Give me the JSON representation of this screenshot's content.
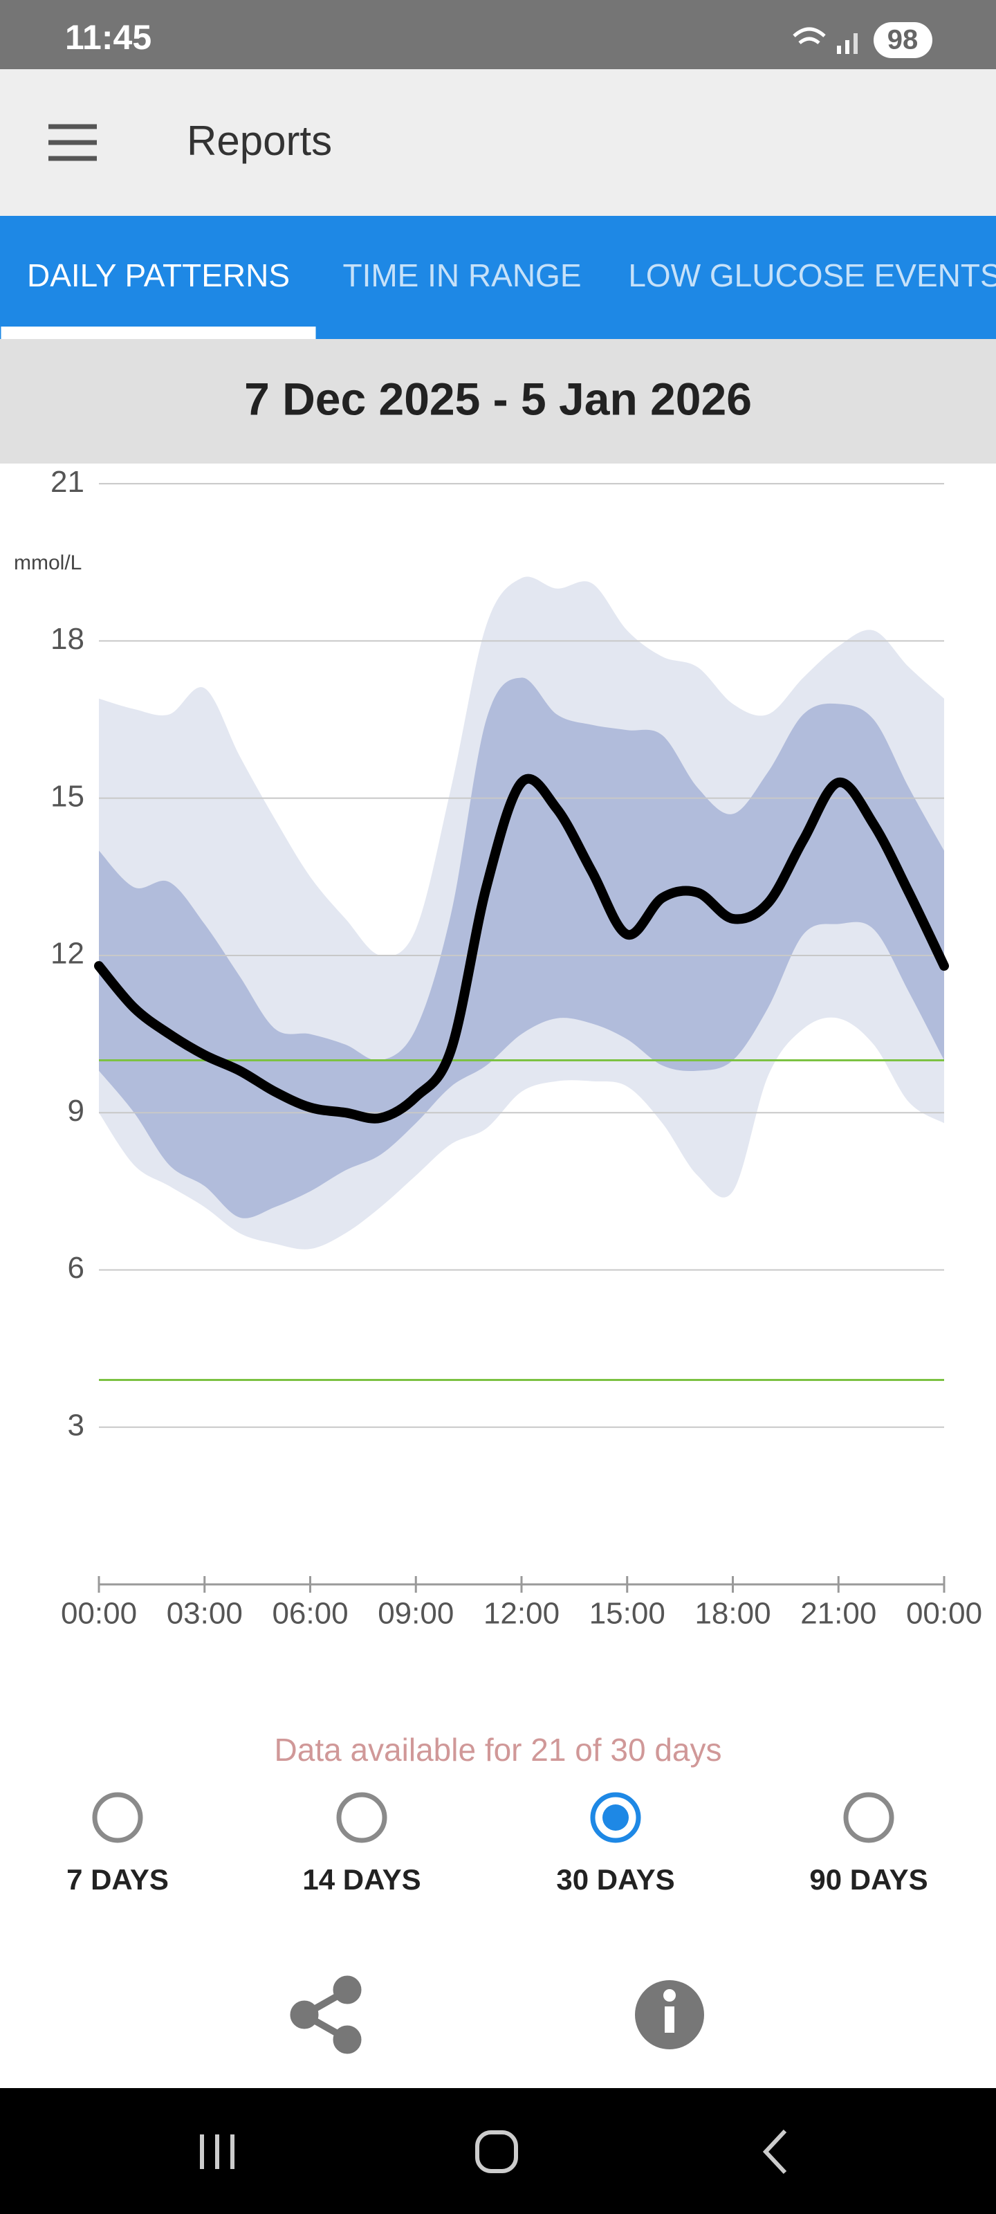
{
  "status_bar": {
    "time": "11:45",
    "battery": 98
  },
  "app_bar": {
    "title": "Reports"
  },
  "tabs": [
    {
      "label": "DAILY PATTERNS",
      "selected": true
    },
    {
      "label": "TIME IN RANGE",
      "selected": false
    },
    {
      "label": "LOW GLUCOSE EVENTS",
      "selected": false
    }
  ],
  "date_range": "7 Dec 2025 - 5 Jan 2026",
  "chart_data": {
    "type": "line",
    "y_label": "mmol/L",
    "x": [
      0,
      1,
      2,
      3,
      4,
      5,
      6,
      7,
      8,
      9,
      10,
      11,
      12,
      13,
      14,
      15,
      16,
      17,
      18,
      19,
      20,
      21,
      22,
      23,
      24
    ],
    "xlim": [
      0,
      24
    ],
    "xticks": [
      {
        "value": 0,
        "label": "00:00"
      },
      {
        "value": 3,
        "label": "03:00"
      },
      {
        "value": 6,
        "label": "06:00"
      },
      {
        "value": 9,
        "label": "09:00"
      },
      {
        "value": 12,
        "label": "12:00"
      },
      {
        "value": 15,
        "label": "15:00"
      },
      {
        "value": 18,
        "label": "18:00"
      },
      {
        "value": 21,
        "label": "21:00"
      },
      {
        "value": 24,
        "label": "00:00"
      }
    ],
    "ylim": [
      0,
      21
    ],
    "yticks": [
      3,
      6,
      9,
      12,
      15,
      18,
      21
    ],
    "grid": true,
    "target_lines": [
      10,
      3.9
    ],
    "target_color": "#7cc242",
    "bands": [
      {
        "color": "#e3e7f1",
        "upper": [
          16.9,
          16.7,
          16.6,
          17.1,
          15.8,
          14.6,
          13.5,
          12.7,
          12.0,
          12.5,
          15.2,
          18.3,
          19.2,
          19.0,
          19.1,
          18.2,
          17.7,
          17.5,
          16.8,
          16.6,
          17.3,
          17.9,
          18.2,
          17.5,
          16.9
        ],
        "lower": [
          9.0,
          8.0,
          7.6,
          7.2,
          6.7,
          6.5,
          6.4,
          6.7,
          7.2,
          7.8,
          8.4,
          8.7,
          9.4,
          9.6,
          9.6,
          9.5,
          8.8,
          7.8,
          7.5,
          9.7,
          10.6,
          10.8,
          10.3,
          9.2,
          8.8
        ]
      },
      {
        "color": "#b1bcdb",
        "upper": [
          14.0,
          13.3,
          13.4,
          12.6,
          11.6,
          10.6,
          10.5,
          10.3,
          10.0,
          10.6,
          12.8,
          16.5,
          17.3,
          16.6,
          16.4,
          16.3,
          16.2,
          15.2,
          14.7,
          15.5,
          16.6,
          16.8,
          16.5,
          15.2,
          14.0
        ],
        "lower": [
          9.8,
          9.0,
          8.0,
          7.6,
          7.0,
          7.2,
          7.5,
          7.9,
          8.2,
          8.8,
          9.5,
          9.9,
          10.5,
          10.8,
          10.7,
          10.4,
          9.9,
          9.8,
          10.0,
          11.0,
          12.4,
          12.6,
          12.5,
          11.3,
          10.0
        ]
      }
    ],
    "series": [
      {
        "color": "#000000",
        "values": [
          11.8,
          11.0,
          10.5,
          10.1,
          9.8,
          9.4,
          9.1,
          9.0,
          8.9,
          9.3,
          10.2,
          13.3,
          15.3,
          14.8,
          13.6,
          12.4,
          13.1,
          13.2,
          12.7,
          13.0,
          14.2,
          15.3,
          14.5,
          13.2,
          11.8
        ]
      }
    ]
  },
  "availability": "Data available for 21 of 30 days",
  "periods": [
    {
      "label": "7 DAYS",
      "selected": false
    },
    {
      "label": "14 DAYS",
      "selected": false
    },
    {
      "label": "30 DAYS",
      "selected": true
    },
    {
      "label": "90 DAYS",
      "selected": false
    }
  ]
}
